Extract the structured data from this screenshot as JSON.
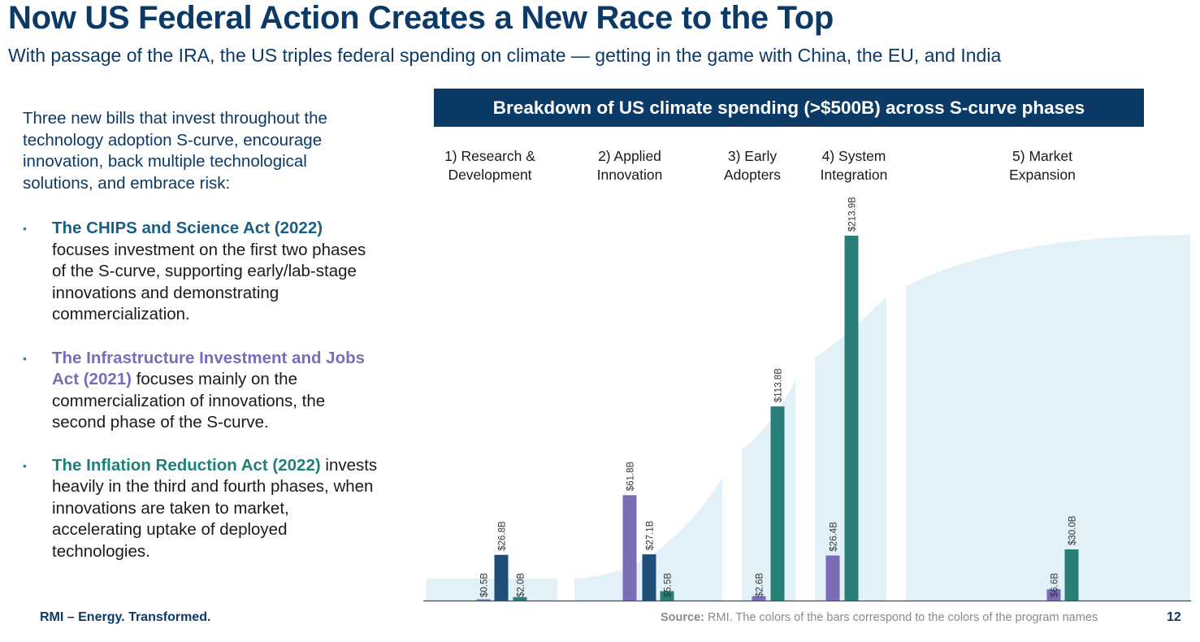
{
  "title": "Now US Federal Action Creates a New Race to the Top",
  "subtitle": "With passage of the IRA, the US triples federal spending on climate — getting in the game with China, the EU, and India",
  "intro": "Three new bills that invest throughout the technology adoption S-curve, encourage innovation, back multiple technological solutions, and embrace risk:",
  "bullets": [
    {
      "marker": "•",
      "name": "The CHIPS and Science Act (2022)",
      "text": " focuses investment on the first two phases of the S-curve, supporting early/lab-stage innovations and demonstrating commercialization."
    },
    {
      "marker": "•",
      "name": "The Infrastructure Investment and Jobs Act (2021)",
      "text": " focuses mainly on the commercialization of innovations, the second phase of the S-curve."
    },
    {
      "marker": "•",
      "name": "The Inflation Reduction Act (2022)",
      "text": " invests heavily in the third and fourth phases, when innovations are taken to market, accelerating uptake of deployed technologies."
    }
  ],
  "footer": {
    "brand": "RMI – Energy. Transformed.",
    "source_label": "Source:",
    "source_text": " RMI.  The colors of the bars correspond to the colors of the program names",
    "page": "12"
  },
  "colors": {
    "navy": "#0c3a66",
    "chips": "#1f4e79",
    "iija": "#7b6cb8",
    "ira": "#2a7e78",
    "scurve": "#e2f0f7"
  },
  "chart_data": {
    "type": "bar",
    "title": "Breakdown of US climate spending (>$500B) across S-curve phases",
    "categories": [
      [
        "1) Research &",
        "Development"
      ],
      [
        "2) Applied",
        "Innovation"
      ],
      [
        "3) Early",
        "Adopters"
      ],
      [
        "4) System",
        "Integration"
      ],
      [
        "5) Market",
        "Expansion"
      ]
    ],
    "unit": "$B",
    "series": [
      {
        "key": "iija",
        "values": [
          0.5,
          61.8,
          2.6,
          26.4,
          6.6
        ],
        "labels": [
          "$0.5B",
          "$61.8B",
          "$2.6B",
          "$26.4B",
          "$6.6B"
        ]
      },
      {
        "key": "chips",
        "values": [
          26.8,
          27.1,
          null,
          null,
          null
        ],
        "labels": [
          "$26.8B",
          "$27.1B",
          "",
          "",
          ""
        ]
      },
      {
        "key": "ira",
        "values": [
          2.0,
          5.5,
          113.8,
          213.9,
          30.0
        ],
        "labels": [
          "$2.0B",
          "$5.5B",
          "$113.8B",
          "$213.9B",
          "$30.0B"
        ]
      }
    ],
    "ylim": [
      0,
      213.9
    ],
    "grid": false,
    "legend": "none",
    "background": "s-curve"
  }
}
